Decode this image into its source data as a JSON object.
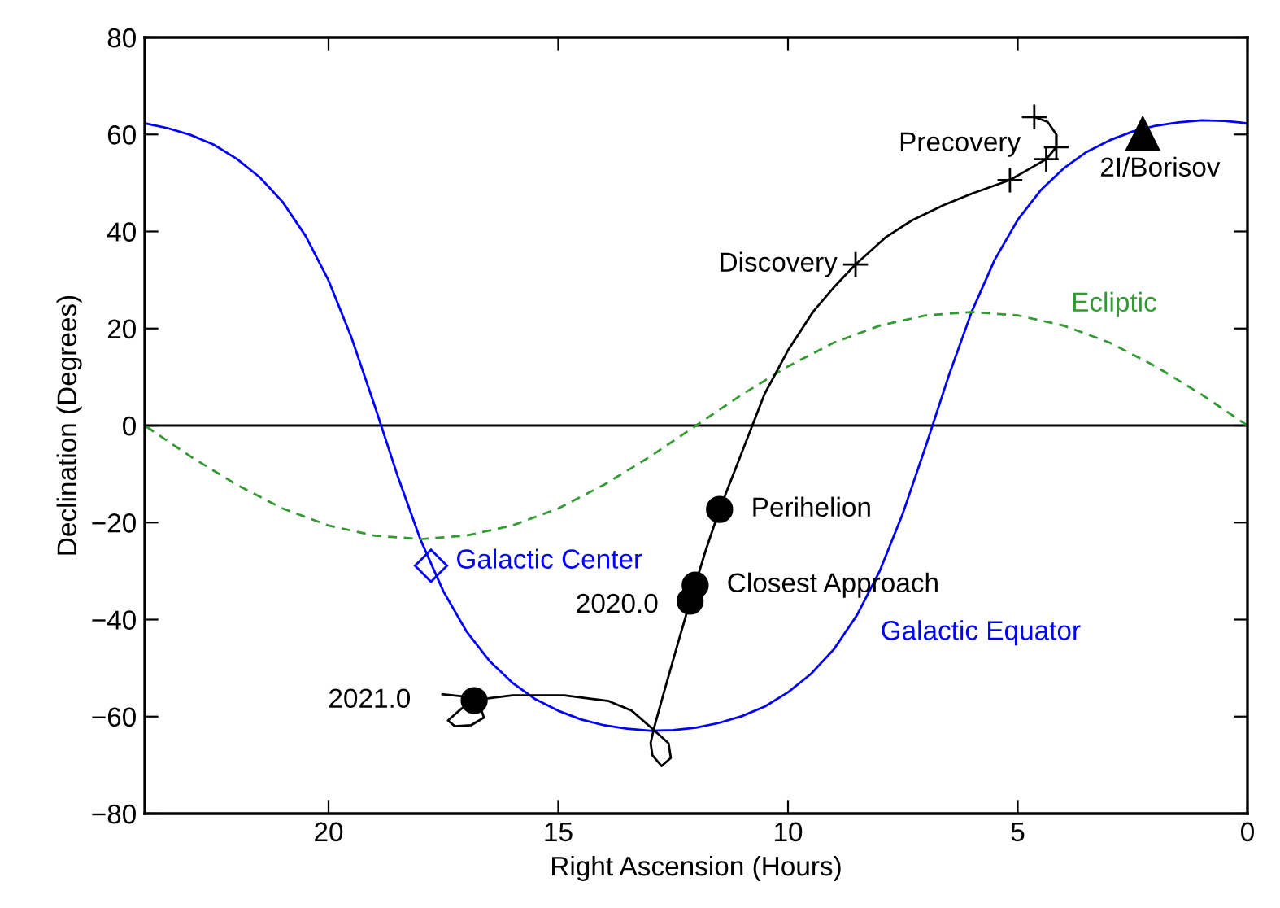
{
  "chart_data": {
    "type": "line",
    "xlabel": "Right Ascension (Hours)",
    "ylabel": "Declination (Degrees)",
    "xlim": [
      24,
      0
    ],
    "xticks": [
      20,
      15,
      10,
      5,
      0
    ],
    "ylim": [
      -80,
      80
    ],
    "yticks": [
      -80,
      -60,
      -40,
      -20,
      0,
      20,
      40,
      60,
      80
    ],
    "grid": false,
    "ref_lines": [
      {
        "axis": "y",
        "value": 0,
        "color": "#000000"
      }
    ],
    "series": [
      {
        "name": "Galactic Equator",
        "color": "#0000ff",
        "line_style": "solid",
        "x": [
          0,
          0.5,
          1,
          1.5,
          2,
          2.5,
          3,
          3.5,
          4,
          4.5,
          5,
          5.5,
          6,
          6.5,
          7,
          7.5,
          8,
          8.5,
          9,
          9.5,
          10,
          10.5,
          11,
          11.5,
          12,
          12.5,
          13,
          13.5,
          14,
          14.5,
          15,
          15.5,
          16,
          16.5,
          17,
          17.5,
          18,
          18.5,
          19,
          19.5,
          20,
          20.5,
          21,
          21.5,
          22,
          22.5,
          23,
          23.5,
          24
        ],
        "values": [
          62.3,
          62.8,
          62.9,
          62.5,
          61.8,
          60.6,
          58.8,
          56.4,
          53,
          48.5,
          42.4,
          34.2,
          23.5,
          10.3,
          -4.2,
          -18.1,
          -29.9,
          -39.1,
          -46.1,
          -51.2,
          -55,
          -57.9,
          -59.9,
          -61.3,
          -62.3,
          -62.8,
          -62.9,
          -62.5,
          -61.8,
          -60.6,
          -58.8,
          -56.4,
          -53,
          -48.5,
          -42.4,
          -34.2,
          -23.5,
          -10.3,
          4.2,
          18.1,
          29.9,
          39.1,
          46.1,
          51.2,
          55,
          57.9,
          59.9,
          61.3,
          62.3
        ]
      },
      {
        "name": "Ecliptic",
        "color": "#339933",
        "line_style": "dashed",
        "x": [
          0,
          1,
          2,
          3,
          4,
          5,
          6,
          7,
          8,
          9,
          10,
          11,
          12,
          13,
          14,
          15,
          16,
          17,
          18,
          19,
          20,
          21,
          22,
          23,
          24
        ],
        "values": [
          0,
          6.4,
          12.2,
          17.1,
          20.6,
          22.7,
          23.4,
          22.7,
          20.6,
          17.1,
          12.2,
          6.4,
          0,
          -6.4,
          -12.2,
          -17.1,
          -20.6,
          -22.7,
          -23.4,
          -22.7,
          -20.6,
          -17.1,
          -12.2,
          -6.4,
          0
        ]
      },
      {
        "color": "#000000",
        "line_style": "solid",
        "x": [
          4.64,
          4.35,
          4.16,
          4.16,
          4.38,
          5.17,
          6.0,
          6.62,
          7.3,
          7.86,
          8.53,
          9.0,
          9.45,
          10.0,
          10.51,
          11.04,
          11.49,
          11.8,
          12.02,
          12.13,
          12.4,
          12.7,
          12.92,
          12.99,
          12.95,
          12.75,
          12.55,
          12.6,
          12.95,
          13.4,
          13.9,
          14.87,
          16.0,
          16.5,
          16.83,
          17.1,
          17.4,
          17.25,
          16.9,
          16.62,
          16.7,
          17.0,
          17.52
        ],
        "values": [
          63.6,
          62.6,
          60.0,
          57.4,
          54.9,
          50.6,
          47.8,
          45.4,
          42.3,
          38.9,
          33.2,
          28.5,
          23.5,
          15.5,
          6.5,
          -6.4,
          -17.3,
          -26.0,
          -32.9,
          -36.2,
          -45.0,
          -55.0,
          -62.5,
          -65.5,
          -68.0,
          -70.2,
          -68.5,
          -65.5,
          -62.5,
          -58.8,
          -56.8,
          -55.6,
          -55.6,
          -56.2,
          -56.7,
          -58.3,
          -60.8,
          -62.0,
          -61.8,
          -60.2,
          -57.8,
          -55.9,
          -55.4
        ]
      },
      {
        "type": "scatter",
        "marker": "cross",
        "color": "#000000",
        "x": [
          4.64,
          4.16,
          4.38,
          5.17,
          8.53
        ],
        "values": [
          63.6,
          57.4,
          54.9,
          50.6,
          33.2
        ]
      },
      {
        "type": "scatter",
        "marker": "circle",
        "color": "#000000",
        "x": [
          11.49,
          12.02,
          12.13,
          16.83
        ],
        "values": [
          -17.3,
          -32.9,
          -36.2,
          -56.7
        ]
      },
      {
        "name": "Galactic Center",
        "type": "scatter",
        "marker": "diamond",
        "color": "#0000ff",
        "x": [
          17.77
        ],
        "values": [
          -28.9
        ]
      },
      {
        "name": "2I/Borisov",
        "type": "scatter",
        "marker": "triangle",
        "color": "#000000",
        "x": [
          2.28
        ],
        "values": [
          60.2
        ]
      }
    ],
    "annotations": [
      {
        "text": "Precovery",
        "x": 4.64,
        "y": 63.6
      },
      {
        "text": "Discovery",
        "x": 8.53,
        "y": 33.2
      },
      {
        "text": "Perihelion",
        "x": 11.49,
        "y": -17.3
      },
      {
        "text": "Closest Approach",
        "x": 12.02,
        "y": -32.9
      },
      {
        "text": "2020.0",
        "x": 12.13,
        "y": -36.2
      },
      {
        "text": "2021.0",
        "x": 16.83,
        "y": -56.7
      }
    ]
  }
}
